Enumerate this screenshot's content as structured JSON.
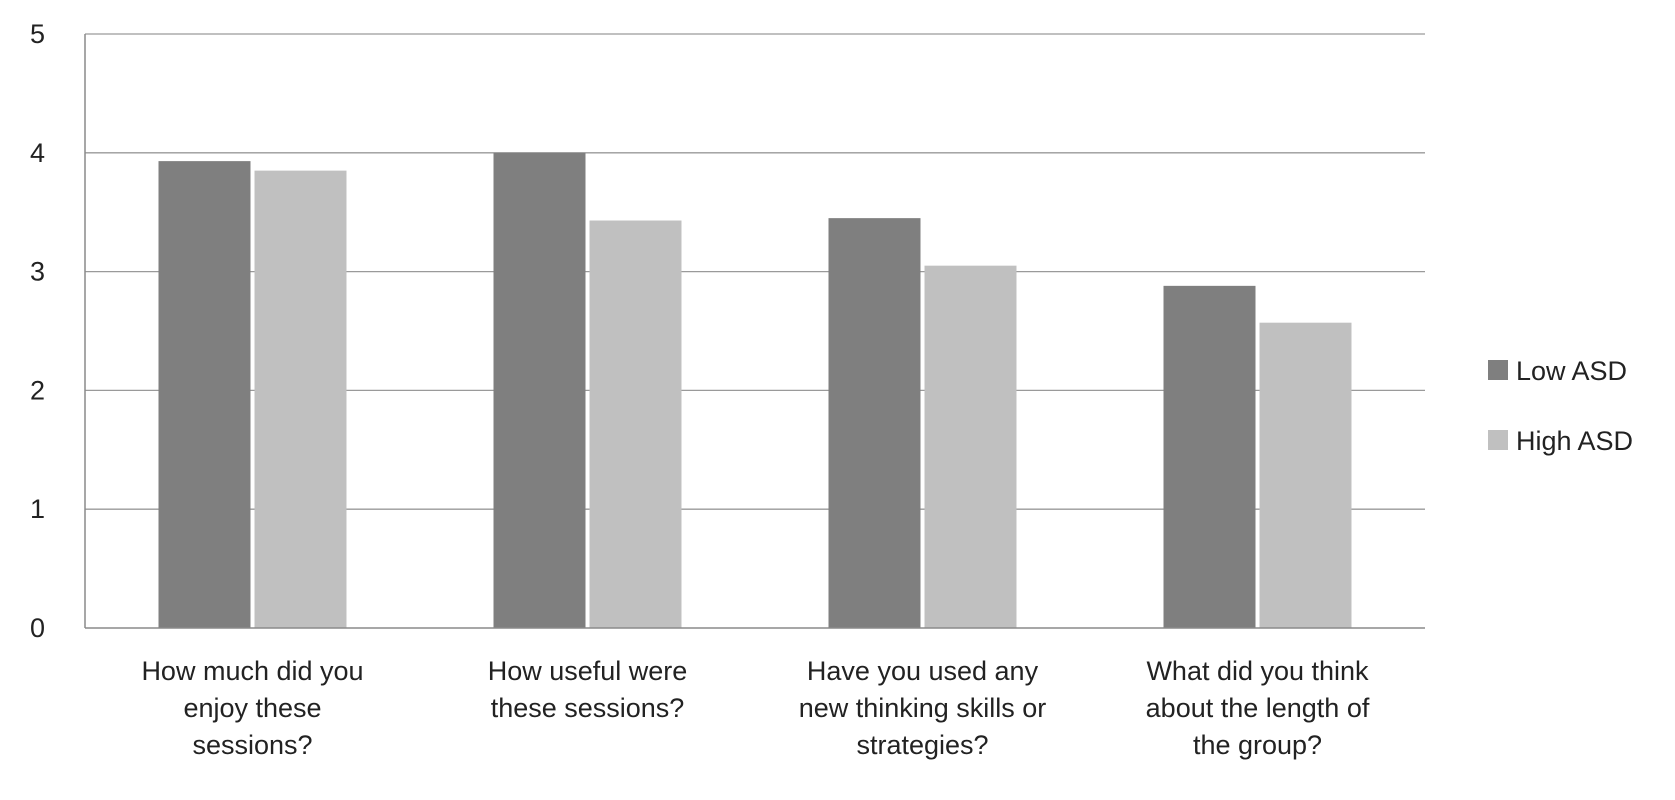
{
  "chart_data": {
    "type": "bar",
    "categories": [
      "How much did you enjoy these sessions?",
      "How useful were these sessions?",
      "Have you used any new thinking skills or strategies?",
      "What did you think about the length of the group?"
    ],
    "category_lines": [
      [
        "How much did you",
        "enjoy these",
        "sessions?"
      ],
      [
        "How useful were",
        "these sessions?"
      ],
      [
        "Have you used any",
        "new thinking skills or",
        "strategies?"
      ],
      [
        "What did you think",
        "about the length of",
        "the group?"
      ]
    ],
    "series": [
      {
        "name": "Low ASD",
        "values": [
          3.93,
          4.0,
          3.45,
          2.88
        ],
        "color": "#7f7f7f"
      },
      {
        "name": "High ASD",
        "values": [
          3.85,
          3.43,
          3.05,
          2.57
        ],
        "color": "#c0c0c0"
      }
    ],
    "ylim": [
      0,
      5
    ],
    "yticks": [
      0,
      1,
      2,
      3,
      4,
      5
    ],
    "grid": true,
    "legend": "right",
    "title": "",
    "xlabel": "",
    "ylabel": ""
  }
}
